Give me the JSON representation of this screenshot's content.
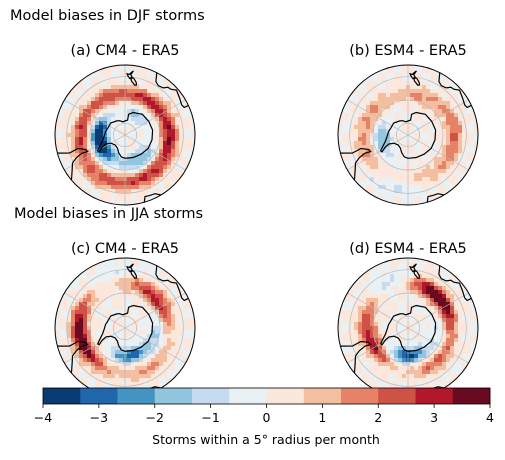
{
  "figure": {
    "title_djf": "Model biases in DJF storms",
    "title_jja": "Model biases in JJA storms"
  },
  "chart_data": [
    {
      "type": "heatmap",
      "projection": "south-polar-stereographic",
      "title": "(a) CM4 - ERA5",
      "season": "DJF",
      "pattern": [
        {
          "lon": 30,
          "lat": -50,
          "value": 2.5
        },
        {
          "lon": 90,
          "lat": -52,
          "value": 3.0
        },
        {
          "lon": 150,
          "lat": -55,
          "value": 2.5
        },
        {
          "lon": -150,
          "lat": -55,
          "value": 2.0
        },
        {
          "lon": -90,
          "lat": -52,
          "value": 2.5
        },
        {
          "lon": -30,
          "lat": -48,
          "value": 2.0
        },
        {
          "lon": -60,
          "lat": -68,
          "value": -3.5
        },
        {
          "lon": -100,
          "lat": -68,
          "value": -3.0
        },
        {
          "lon": 30,
          "lat": -66,
          "value": -2.0
        },
        {
          "lon": 150,
          "lat": -70,
          "value": -1.5
        }
      ]
    },
    {
      "type": "heatmap",
      "projection": "south-polar-stereographic",
      "title": "(b) ESM4 - ERA5",
      "season": "DJF",
      "pattern": [
        {
          "lon": 90,
          "lat": -50,
          "value": 2.0
        },
        {
          "lon": 160,
          "lat": -55,
          "value": 1.5
        },
        {
          "lon": -120,
          "lat": -55,
          "value": 1.5
        },
        {
          "lon": -60,
          "lat": -50,
          "value": 1.5
        },
        {
          "lon": 30,
          "lat": -52,
          "value": 1.0
        },
        {
          "lon": -80,
          "lat": -68,
          "value": -2.0
        },
        {
          "lon": -20,
          "lat": -45,
          "value": -1.0
        }
      ]
    },
    {
      "type": "heatmap",
      "projection": "south-polar-stereographic",
      "title": "(c) CM4 - ERA5",
      "season": "JJA",
      "pattern": [
        {
          "lon": -60,
          "lat": -52,
          "value": 3.0
        },
        {
          "lon": -100,
          "lat": -50,
          "value": 2.5
        },
        {
          "lon": 120,
          "lat": -55,
          "value": 2.5
        },
        {
          "lon": 160,
          "lat": -50,
          "value": 2.0
        },
        {
          "lon": 30,
          "lat": -50,
          "value": 1.5
        },
        {
          "lon": 10,
          "lat": -66,
          "value": -3.0
        },
        {
          "lon": 80,
          "lat": -62,
          "value": -1.5
        },
        {
          "lon": 180,
          "lat": -45,
          "value": -1.0
        }
      ]
    },
    {
      "type": "heatmap",
      "projection": "south-polar-stereographic",
      "title": "(d) ESM4 - ERA5",
      "season": "JJA",
      "pattern": [
        {
          "lon": 150,
          "lat": -52,
          "value": 3.5
        },
        {
          "lon": 110,
          "lat": -55,
          "value": 2.5
        },
        {
          "lon": -60,
          "lat": -58,
          "value": 3.0
        },
        {
          "lon": -110,
          "lat": -52,
          "value": 2.0
        },
        {
          "lon": 40,
          "lat": -52,
          "value": 2.0
        },
        {
          "lon": 0,
          "lat": -66,
          "value": -3.5
        },
        {
          "lon": -160,
          "lat": -50,
          "value": -1.5
        },
        {
          "lon": 80,
          "lat": -62,
          "value": -1.0
        }
      ]
    }
  ],
  "colorbar": {
    "label": "Storms within a 5° radius per month",
    "min": -4,
    "max": 4,
    "levels": [
      -4,
      -3.333,
      -2.667,
      -2,
      -1.333,
      -0.667,
      0,
      0.667,
      1.333,
      2,
      2.667,
      3.333,
      4
    ],
    "ticks": [
      -4,
      -3,
      -2,
      -1,
      0,
      1,
      2,
      3,
      4
    ],
    "tick_labels": [
      "−4",
      "−3",
      "−2",
      "−1",
      "0",
      "1",
      "2",
      "3",
      "4"
    ],
    "colors": [
      "#083c72",
      "#2166ac",
      "#4393c3",
      "#92c5de",
      "#c6dbef",
      "#e9f1f5",
      "#fbe7dc",
      "#f4bfa0",
      "#e58267",
      "#cf5246",
      "#b2182b",
      "#6a0a20"
    ]
  }
}
